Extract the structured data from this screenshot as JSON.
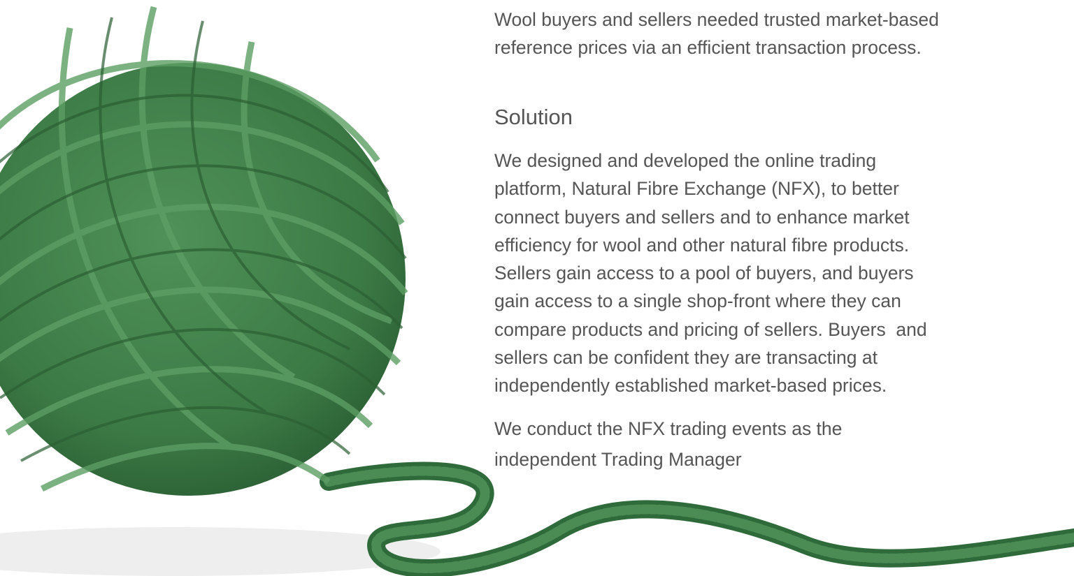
{
  "problem": {
    "lines": [
      "Wool buyers and sellers needed trusted market-based",
      "reference prices via an efficient transaction process."
    ]
  },
  "solution": {
    "heading": "Solution",
    "paragraph_1": [
      "We designed and developed the online trading",
      "platform, Natural Fibre Exchange (NFX), to better",
      "connect buyers and sellers and to enhance market",
      "efficiency for wool and other natural fibre products.",
      "Sellers gain access to a pool of buyers, and buyers",
      "gain access to a single shop-front where they can",
      "compare products and pricing of sellers. Buyers  and",
      "sellers can be confident they are transacting at",
      "independently established market-based prices."
    ],
    "paragraph_2": [
      "We conduct the NFX trading events as the",
      "independent Trading Manager"
    ]
  }
}
